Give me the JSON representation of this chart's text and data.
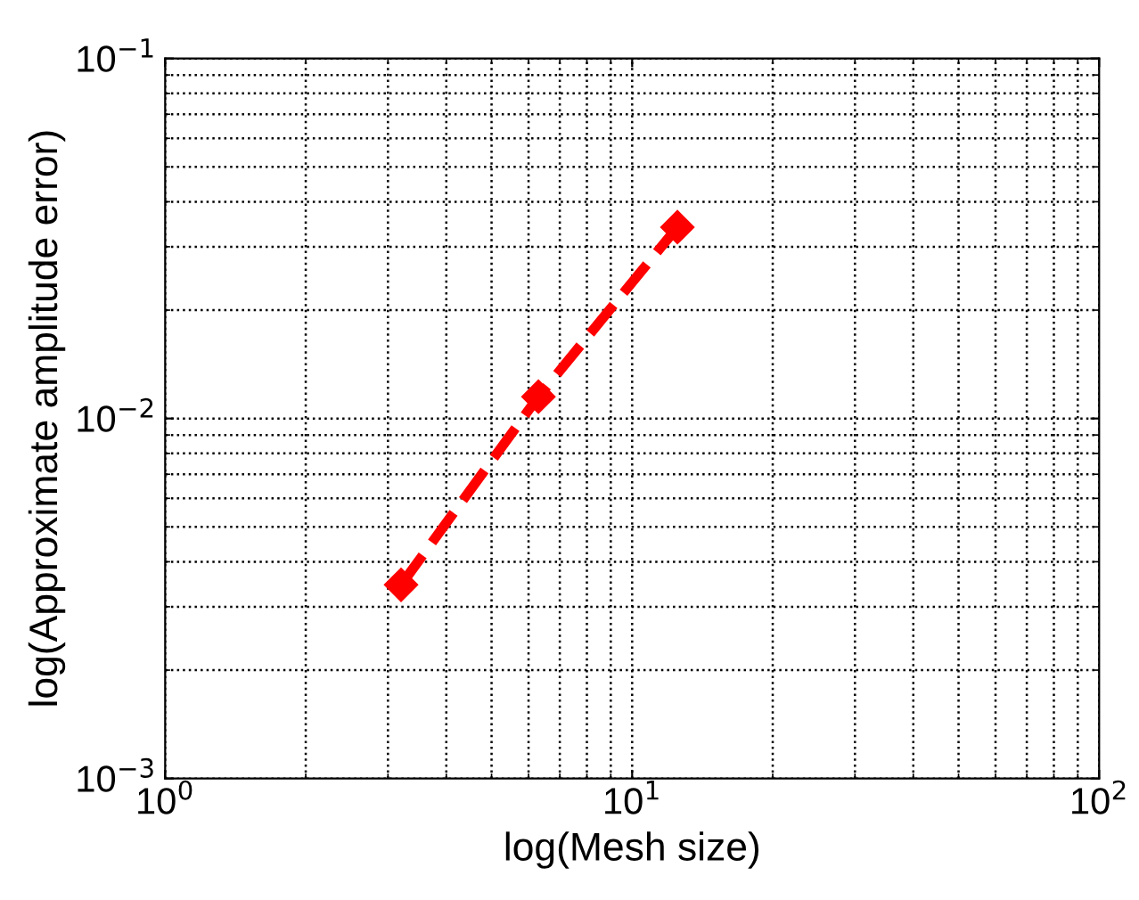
{
  "chart_data": {
    "type": "line",
    "xlabel": "log(Mesh size)",
    "ylabel": "log(Approximate amplitude error)",
    "x": [
      3.2,
      6.3,
      12.5
    ],
    "series": [
      {
        "color": "#ff0000",
        "values": [
          0.00345,
          0.0115,
          0.034
        ]
      }
    ],
    "log": "xy",
    "xlim": [
      1,
      100
    ],
    "ylim": [
      0.001,
      0.1
    ],
    "xticks": [
      {
        "value": 1,
        "label": "10$^{0}$"
      },
      {
        "value": 10,
        "label": "10$^{1}$"
      },
      {
        "value": 100,
        "label": "10$^{2}$"
      }
    ],
    "yticks": [
      {
        "value": 0.001,
        "label": "10$^{−3}$"
      },
      {
        "value": 0.01,
        "label": "10$^{−2}$"
      },
      {
        "value": 0.1,
        "label": "10$^{−1}$"
      }
    ],
    "grid": true,
    "marker": "diamond",
    "line_style": "dashed"
  }
}
